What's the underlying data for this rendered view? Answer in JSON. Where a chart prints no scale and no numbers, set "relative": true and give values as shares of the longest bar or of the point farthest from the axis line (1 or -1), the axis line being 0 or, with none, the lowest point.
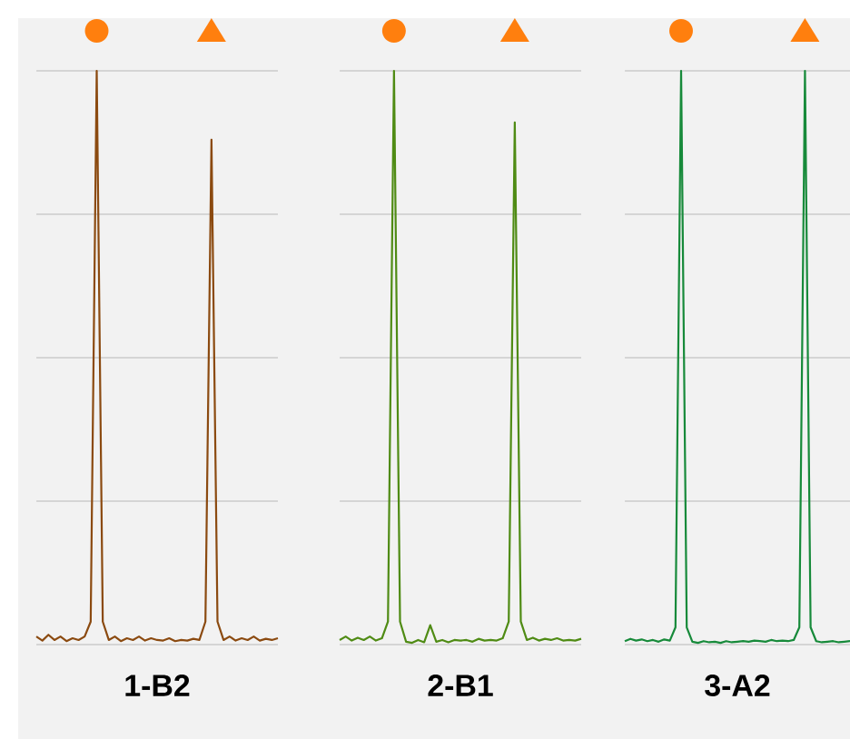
{
  "chart_data": [
    {
      "type": "line",
      "xlabel": "1-B2",
      "relative": true,
      "grid": "y",
      "categories": [
        null,
        null,
        null,
        null,
        null,
        null,
        null,
        null,
        null,
        null,
        null,
        null,
        null,
        null,
        null,
        null,
        null,
        null,
        null,
        null,
        null,
        null,
        null,
        null,
        null,
        null,
        null,
        null,
        null,
        null,
        null,
        null,
        null,
        null,
        null,
        null,
        null,
        null,
        null,
        null,
        null
      ],
      "series": [
        {
          "color": "#8b4a10",
          "values": [
            0.014,
            0.007,
            0.017,
            0.008,
            0.014,
            0.006,
            0.011,
            0.008,
            0.014,
            0.04,
            1,
            0.04,
            0.008,
            0.014,
            0.006,
            0.011,
            0.008,
            0.014,
            0.007,
            0.011,
            0.008,
            0.007,
            0.011,
            0.006,
            0.008,
            0.007,
            0.01,
            0.008,
            0.04,
            0.88,
            0.04,
            0.008,
            0.014,
            0.007,
            0.011,
            0.008,
            0.014,
            0.007,
            0.01,
            0.008,
            0.011
          ]
        }
      ]
    },
    {
      "type": "line",
      "xlabel": "2-B1",
      "relative": true,
      "grid": "y",
      "categories": [
        null,
        null,
        null,
        null,
        null,
        null,
        null,
        null,
        null,
        null,
        null,
        null,
        null,
        null,
        null,
        null,
        null,
        null,
        null,
        null,
        null,
        null,
        null,
        null,
        null,
        null,
        null,
        null,
        null,
        null,
        null,
        null,
        null,
        null,
        null,
        null,
        null,
        null,
        null,
        null,
        null
      ],
      "series": [
        {
          "color": "#4f8b14",
          "values": [
            0.008,
            0.014,
            0.007,
            0.012,
            0.008,
            0.014,
            0.007,
            0.011,
            0.04,
            1,
            0.04,
            0.005,
            0.003,
            0.008,
            0.004,
            0.034,
            0.005,
            0.008,
            0.004,
            0.008,
            0.007,
            0.008,
            0.005,
            0.01,
            0.007,
            0.008,
            0.007,
            0.011,
            0.04,
            0.91,
            0.04,
            0.008,
            0.012,
            0.007,
            0.01,
            0.008,
            0.011,
            0.007,
            0.008,
            0.007,
            0.01
          ]
        }
      ]
    },
    {
      "type": "line",
      "xlabel": "3-A2",
      "relative": true,
      "grid": "y",
      "categories": [
        null,
        null,
        null,
        null,
        null,
        null,
        null,
        null,
        null,
        null,
        null,
        null,
        null,
        null,
        null,
        null,
        null,
        null,
        null,
        null,
        null,
        null,
        null,
        null,
        null,
        null,
        null,
        null,
        null,
        null,
        null,
        null,
        null,
        null,
        null,
        null,
        null,
        null,
        null,
        null,
        null
      ],
      "series": [
        {
          "color": "#178a3a",
          "values": [
            0.006,
            0.01,
            0.007,
            0.009,
            0.006,
            0.008,
            0.005,
            0.009,
            0.007,
            0.03,
            1,
            0.03,
            0.005,
            0.003,
            0.006,
            0.004,
            0.005,
            0.003,
            0.006,
            0.004,
            0.005,
            0.006,
            0.005,
            0.007,
            0.006,
            0.005,
            0.008,
            0.006,
            0.007,
            0.006,
            0.008,
            0.03,
            1,
            0.03,
            0.006,
            0.004,
            0.005,
            0.006,
            0.004,
            0.005,
            0.006
          ]
        }
      ]
    }
  ]
}
